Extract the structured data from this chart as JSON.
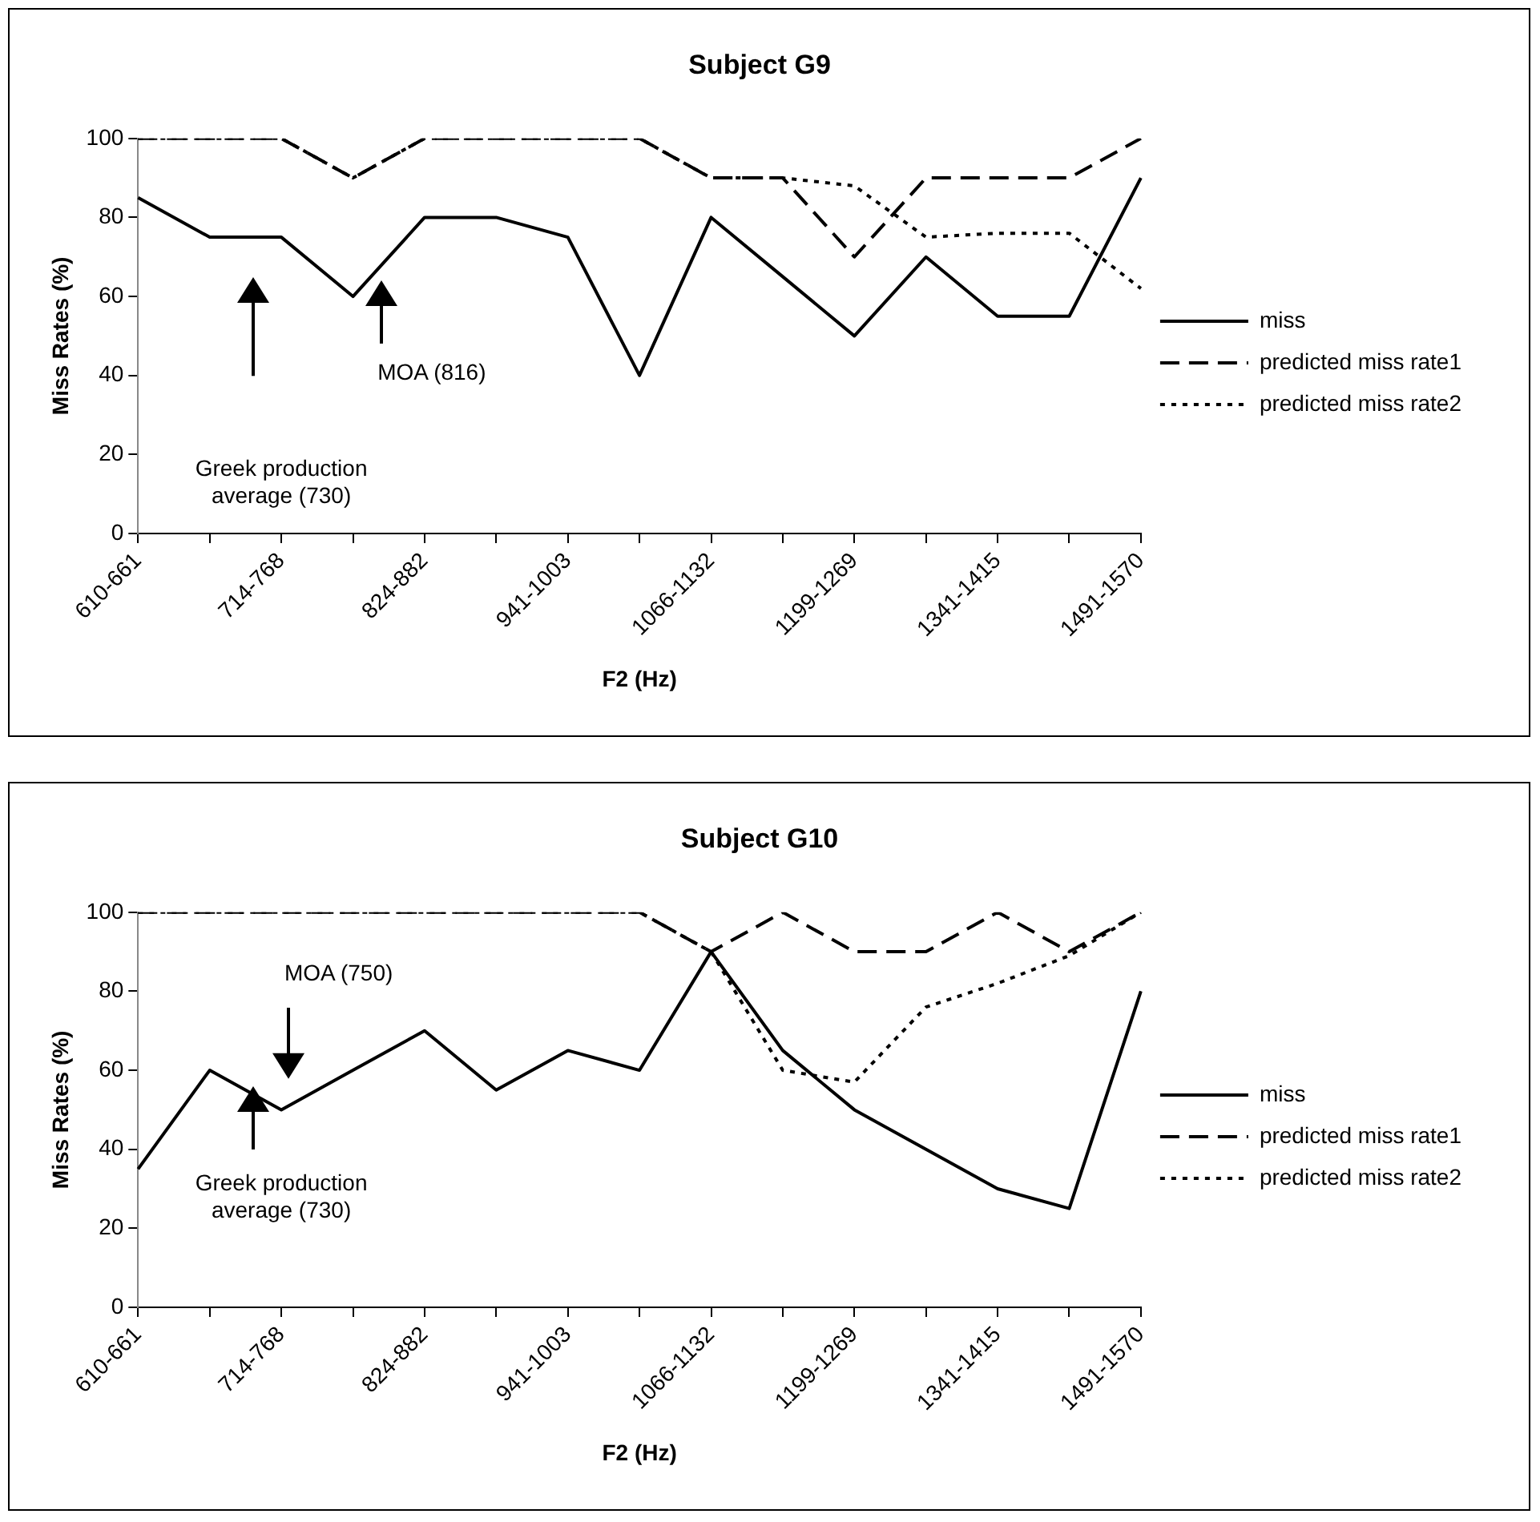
{
  "chart_data": [
    {
      "type": "line",
      "title": "Subject G9",
      "xlabel": "F2 (Hz)",
      "ylabel": "Miss Rates (%)",
      "categories": [
        "610-661",
        null,
        "714-768",
        null,
        "824-882",
        null,
        "941-1003",
        null,
        "1066-1132",
        null,
        "1199-1269",
        null,
        "1341-1415",
        null,
        "1491-1570"
      ],
      "series": [
        {
          "name": "miss",
          "color": "#000000",
          "line_style": "solid",
          "values": [
            85,
            75,
            75,
            60,
            80,
            80,
            75,
            40,
            80,
            65,
            50,
            70,
            55,
            55,
            90
          ]
        },
        {
          "name": "predicted miss rate1",
          "color": "#000000",
          "line_style": "dashed",
          "values": [
            100,
            100,
            100,
            90,
            100,
            100,
            100,
            100,
            90,
            90,
            70,
            90,
            90,
            90,
            100
          ]
        },
        {
          "name": "predicted miss rate2",
          "color": "#000000",
          "line_style": "dotted",
          "values": [
            100,
            100,
            100,
            90,
            100,
            100,
            100,
            100,
            90,
            90,
            88,
            75,
            76,
            76,
            62
          ]
        }
      ],
      "ylim": [
        0,
        100
      ],
      "yticks": [
        0,
        20,
        40,
        60,
        80,
        100
      ],
      "grid": false,
      "legend": "right",
      "marker": "none",
      "annotations": [
        "Greek production average (730)",
        "MOA (816)"
      ]
    },
    {
      "type": "line",
      "title": "Subject G10",
      "xlabel": "F2 (Hz)",
      "ylabel": "Miss Rates (%)",
      "categories": [
        "610-661",
        null,
        "714-768",
        null,
        "824-882",
        null,
        "941-1003",
        null,
        "1066-1132",
        null,
        "1199-1269",
        null,
        "1341-1415",
        null,
        "1491-1570"
      ],
      "series": [
        {
          "name": "miss",
          "color": "#000000",
          "line_style": "solid",
          "values": [
            35,
            60,
            50,
            60,
            70,
            55,
            65,
            60,
            90,
            65,
            50,
            40,
            30,
            25,
            80
          ]
        },
        {
          "name": "predicted miss rate1",
          "color": "#000000",
          "line_style": "dashed",
          "values": [
            100,
            100,
            100,
            100,
            100,
            100,
            100,
            100,
            90,
            100,
            90,
            90,
            100,
            90,
            100
          ]
        },
        {
          "name": "predicted miss rate2",
          "color": "#000000",
          "line_style": "dotted",
          "values": [
            100,
            100,
            100,
            100,
            100,
            100,
            100,
            100,
            90,
            60,
            57,
            76,
            82,
            89,
            100
          ]
        }
      ],
      "ylim": [
        0,
        100
      ],
      "yticks": [
        0,
        20,
        40,
        60,
        80,
        100
      ],
      "grid": false,
      "legend": "right",
      "marker": "none",
      "annotations": [
        "MOA (750)",
        "Greek production average (730)"
      ]
    }
  ]
}
